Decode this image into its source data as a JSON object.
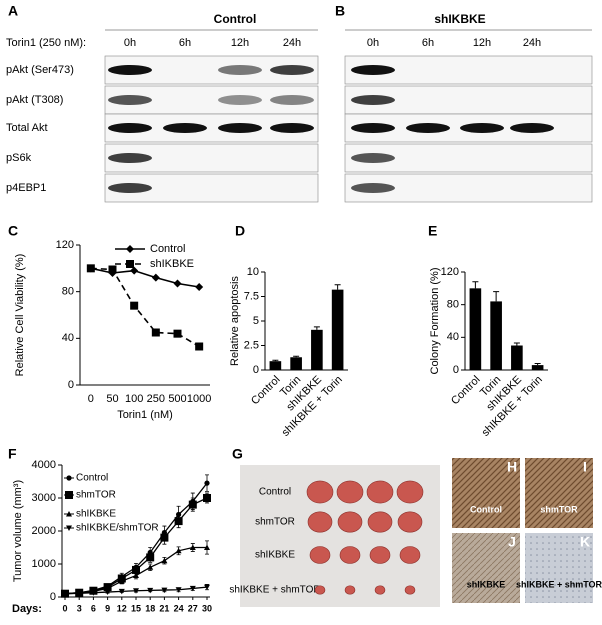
{
  "panel_a": {
    "letter": "A",
    "title": "Control",
    "treatment_label": "Torin1 (250 nM):",
    "lanes": [
      "0h",
      "6h",
      "12h",
      "24h"
    ],
    "rows": [
      "pAkt (Ser473)",
      "pAkt (T308)",
      "Total Akt",
      "pS6k",
      "p4EBP1"
    ]
  },
  "panel_b": {
    "letter": "B",
    "title": "shIKBKE",
    "lanes": [
      "0h",
      "6h",
      "12h",
      "24h"
    ]
  },
  "chart_data": [
    {
      "type": "line",
      "letter": "C",
      "ylabel": "Relative Cell Viability (%)",
      "xlabel": "Torin1 (nM)",
      "categories": [
        "0",
        "50",
        "100",
        "250",
        "500",
        "1000"
      ],
      "ylim": [
        0,
        120
      ],
      "yticks": [
        0,
        40,
        80,
        120
      ],
      "series": [
        {
          "name": "Control",
          "color": "#000000",
          "marker": "diamond",
          "dashed": false,
          "values": [
            100,
            96,
            98,
            92,
            87,
            84
          ]
        },
        {
          "name": "shIKBKE",
          "color": "#000000",
          "marker": "square",
          "dashed": true,
          "values": [
            100,
            99,
            68,
            45,
            44,
            33
          ]
        }
      ]
    },
    {
      "type": "bar",
      "letter": "D",
      "ylabel": "Relative apoptosis",
      "categories": [
        "Control",
        "Torin",
        "shIKBKE",
        "shIKBKE + Torin"
      ],
      "values": [
        0.9,
        1.3,
        4.1,
        8.2
      ],
      "errors": [
        0.1,
        0.1,
        0.3,
        0.5
      ],
      "color": "#000000",
      "ylim": [
        0,
        10
      ],
      "yticks": [
        0,
        2.5,
        5,
        7.5,
        10
      ]
    },
    {
      "type": "bar",
      "letter": "E",
      "ylabel": "Colony Formation (%)",
      "categories": [
        "Control",
        "Torin",
        "shIKBKE",
        "shIKBKE + Torin"
      ],
      "values": [
        100,
        84,
        30,
        6
      ],
      "errors": [
        8,
        12,
        3,
        2
      ],
      "color": "#000000",
      "ylim": [
        0,
        120
      ],
      "yticks": [
        0,
        40,
        80,
        120
      ]
    },
    {
      "type": "numline",
      "letter": "F",
      "ylabel": "Tumor volume (mm³)",
      "xlabel": "Days:",
      "x": [
        0,
        3,
        6,
        9,
        12,
        15,
        18,
        21,
        24,
        27,
        30
      ],
      "xlim": [
        0,
        30
      ],
      "xticks": [
        0,
        3,
        6,
        9,
        12,
        15,
        18,
        21,
        24,
        27,
        30
      ],
      "ylim": [
        0,
        4000
      ],
      "yticks": [
        0,
        1000,
        2000,
        3000,
        4000
      ],
      "series": [
        {
          "name": "Control",
          "color": "#000000",
          "marker": "circle",
          "values": [
            100,
            130,
            200,
            330,
            620,
            900,
            1350,
            1950,
            2500,
            2900,
            3450
          ],
          "errors": [
            20,
            30,
            40,
            60,
            100,
            120,
            150,
            200,
            250,
            250,
            250
          ]
        },
        {
          "name": "shmTOR",
          "color": "#000000",
          "marker": "square",
          "values": [
            100,
            130,
            190,
            300,
            560,
            820,
            1200,
            1800,
            2300,
            2800,
            3000
          ],
          "errors": [
            20,
            30,
            40,
            60,
            100,
            120,
            150,
            200,
            200,
            200,
            150
          ]
        },
        {
          "name": "shIKBKE",
          "color": "#000000",
          "marker": "triangle",
          "values": [
            100,
            120,
            170,
            260,
            480,
            650,
            900,
            1100,
            1400,
            1500,
            1500
          ],
          "errors": [
            20,
            20,
            30,
            40,
            80,
            100,
            100,
            100,
            120,
            120,
            200
          ]
        },
        {
          "name": "shIKBKE/shmTOR",
          "color": "#000000",
          "marker": "tridown",
          "values": [
            100,
            110,
            130,
            150,
            170,
            190,
            200,
            210,
            220,
            260,
            300
          ],
          "errors": [
            20,
            20,
            20,
            30,
            30,
            40,
            40,
            50,
            60,
            60,
            80
          ]
        }
      ]
    }
  ],
  "panel_g": {
    "letter": "G",
    "rows": [
      "Control",
      "shmTOR",
      "shIKBKE",
      "shIKBKE + shmTOR"
    ]
  },
  "panel_hk": [
    {
      "letter": "H",
      "label": "Control"
    },
    {
      "letter": "I",
      "label": "shmTOR"
    },
    {
      "letter": "J",
      "label": "shIKBKE"
    },
    {
      "letter": "K",
      "label": "shIKBKE + shmTOR"
    }
  ]
}
